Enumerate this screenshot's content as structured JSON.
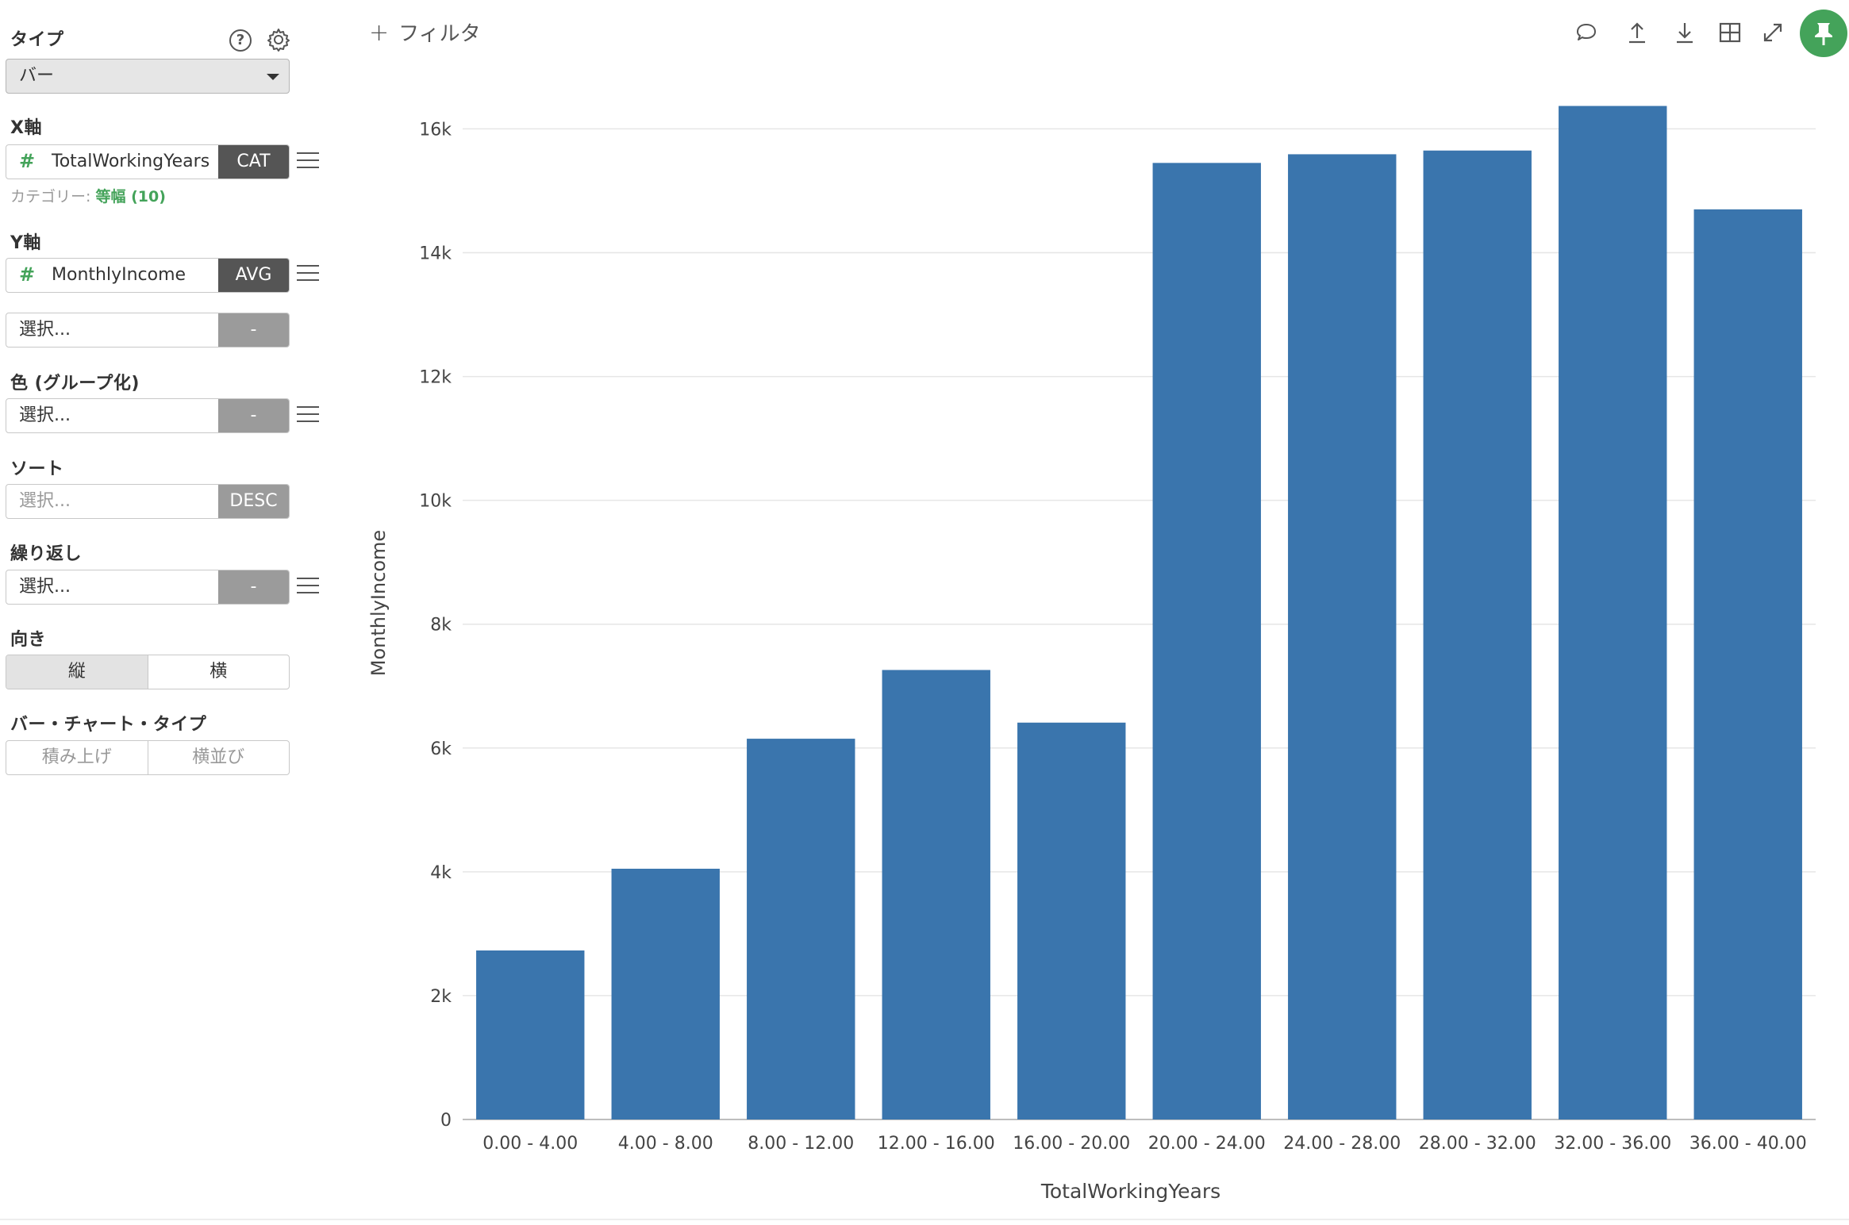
{
  "sidebar": {
    "type": {
      "label": "タイプ",
      "value": "バー"
    },
    "x_axis": {
      "label": "X軸",
      "field": "TotalWorkingYears",
      "tag": "CAT",
      "note_prefix": "カテゴリー: ",
      "note_value": "等幅 (10)"
    },
    "y_axis": {
      "label": "Y軸",
      "field": "MonthlyIncome",
      "tag": "AVG",
      "extra_placeholder": "選択...",
      "extra_tag": "-"
    },
    "color": {
      "label": "色 (グループ化)",
      "placeholder": "選択...",
      "tag": "-"
    },
    "sort": {
      "label": "ソート",
      "placeholder": "選択...",
      "tag": "DESC"
    },
    "repeat": {
      "label": "繰り返し",
      "placeholder": "選択...",
      "tag": "-"
    },
    "orientation": {
      "label": "向き",
      "options": [
        "縦",
        "横"
      ],
      "selected": "縦"
    },
    "bar_type": {
      "label": "バー・チャート・タイプ",
      "options": [
        "積み上げ",
        "横並び"
      ]
    }
  },
  "toolbar": {
    "filter_label": "フィルタ",
    "icons": [
      "comment-icon",
      "upload-icon",
      "download-icon",
      "table-icon",
      "expand-icon",
      "pin-icon"
    ],
    "accent_color": "#44a35a"
  },
  "chart_data": {
    "type": "bar",
    "categories": [
      "0.00 - 4.00",
      "4.00 - 8.00",
      "8.00 - 12.00",
      "12.00 - 16.00",
      "16.00 - 20.00",
      "20.00 - 24.00",
      "24.00 - 28.00",
      "28.00 - 32.00",
      "32.00 - 36.00",
      "36.00 - 40.00"
    ],
    "values": [
      2730,
      4050,
      6150,
      7260,
      6410,
      15450,
      15590,
      15650,
      16370,
      14700
    ],
    "xlabel": "TotalWorkingYears",
    "ylabel": "MonthlyIncome",
    "ylim": [
      0,
      16800
    ],
    "yticks": [
      0,
      2000,
      4000,
      6000,
      8000,
      10000,
      12000,
      14000,
      16000
    ],
    "ytick_labels": [
      "0",
      "2k",
      "4k",
      "6k",
      "8k",
      "10k",
      "12k",
      "14k",
      "16k"
    ],
    "bar_color": "#3a75ad",
    "grid": true
  }
}
